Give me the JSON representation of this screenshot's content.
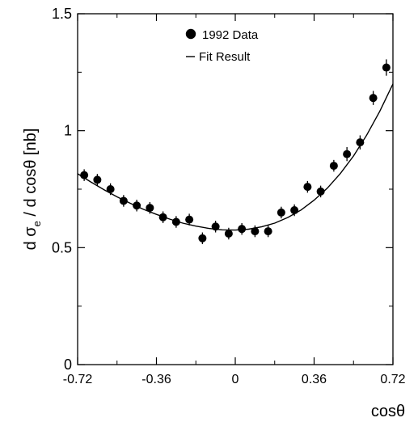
{
  "chart_data": {
    "type": "scatter",
    "title": "",
    "xlabel": "cosθ",
    "ylabel": "d σe / d cosθ  [nb]",
    "ylabel_parts": {
      "before": "d σ",
      "subscript": "e",
      "after": " / d cosθ  [nb]"
    },
    "xlim": [
      -0.72,
      0.72
    ],
    "ylim": [
      0,
      1.5
    ],
    "x_ticks": [
      -0.72,
      -0.36,
      0,
      0.36,
      0.72
    ],
    "x_tick_labels": [
      "-0.72",
      "-0.36",
      "0",
      "0.36",
      "0.72"
    ],
    "y_ticks": [
      0,
      0.5,
      1,
      1.5
    ],
    "y_tick_labels": [
      "0",
      "0.5",
      "1",
      "1.5"
    ],
    "legend_position": "top-center",
    "grid": false,
    "series": [
      {
        "name": "1992 Data",
        "kind": "points-with-errors",
        "x": [
          -0.69,
          -0.63,
          -0.57,
          -0.51,
          -0.45,
          -0.39,
          -0.33,
          -0.27,
          -0.21,
          -0.15,
          -0.09,
          -0.03,
          0.03,
          0.09,
          0.15,
          0.21,
          0.27,
          0.33,
          0.39,
          0.45,
          0.51,
          0.57,
          0.63,
          0.69
        ],
        "y": [
          0.81,
          0.79,
          0.75,
          0.7,
          0.68,
          0.67,
          0.63,
          0.61,
          0.62,
          0.54,
          0.59,
          0.56,
          0.58,
          0.57,
          0.57,
          0.65,
          0.66,
          0.76,
          0.74,
          0.85,
          0.9,
          0.95,
          1.14,
          1.27
        ],
        "err": [
          0.025,
          0.025,
          0.025,
          0.025,
          0.025,
          0.025,
          0.025,
          0.025,
          0.025,
          0.025,
          0.025,
          0.025,
          0.025,
          0.025,
          0.025,
          0.025,
          0.025,
          0.025,
          0.025,
          0.025,
          0.03,
          0.03,
          0.03,
          0.035
        ]
      },
      {
        "name": "Fit Result",
        "kind": "curve",
        "x": [
          -0.72,
          -0.66,
          -0.6,
          -0.54,
          -0.48,
          -0.42,
          -0.36,
          -0.3,
          -0.24,
          -0.18,
          -0.12,
          -0.06,
          0.0,
          0.06,
          0.12,
          0.18,
          0.24,
          0.3,
          0.36,
          0.42,
          0.48,
          0.54,
          0.6,
          0.66,
          0.72
        ],
        "y": [
          0.816,
          0.781,
          0.748,
          0.717,
          0.69,
          0.664,
          0.642,
          0.622,
          0.605,
          0.592,
          0.582,
          0.576,
          0.575,
          0.579,
          0.589,
          0.605,
          0.629,
          0.661,
          0.703,
          0.754,
          0.817,
          0.892,
          0.981,
          1.083,
          1.2
        ]
      }
    ],
    "colors": {
      "points": "#000000",
      "curve": "#000000",
      "axes": "#000000"
    }
  }
}
